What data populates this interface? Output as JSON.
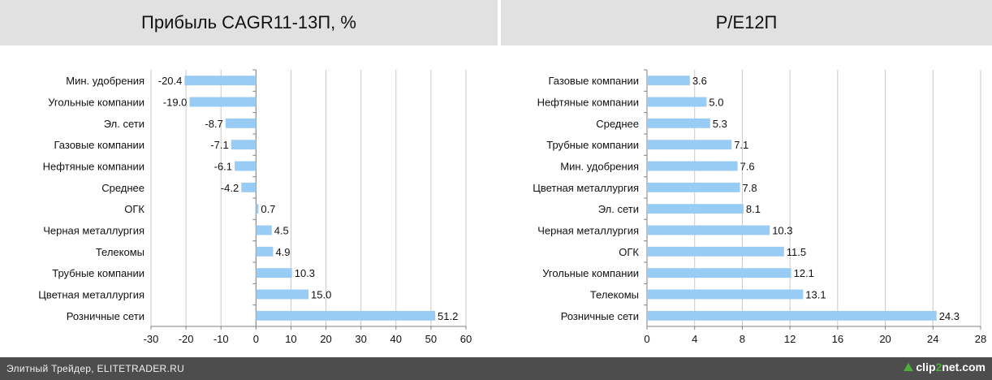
{
  "headers": {
    "left": "Прибыль CAGR11-13П, %",
    "right": "P/E12П"
  },
  "footer": {
    "left_text": "Элитный Трейдер, ELITETRADER.RU",
    "logo_pre": "clip",
    "logo_two": "2",
    "logo_post": "net.com"
  },
  "colors": {
    "bar": "#99ccf5",
    "header_bg": "#e1e1e1",
    "footer_bg": "#4d4d4d",
    "axis": "#808080",
    "grid": "#c8c8c8"
  },
  "chart_data": [
    {
      "type": "bar",
      "orientation": "horizontal",
      "title": "Прибыль CAGR11-13П, %",
      "categories": [
        "Мин. удобрения",
        "Угольные компании",
        "Эл. сети",
        "Газовые компании",
        "Нефтяные компании",
        "Среднее",
        "ОГК",
        "Черная металлургия",
        "Телекомы",
        "Трубные компании",
        "Цветная металлургия",
        "Розничные сети"
      ],
      "values": [
        -20.4,
        -19.0,
        -8.7,
        -7.1,
        -6.1,
        -4.2,
        0.7,
        4.5,
        4.9,
        10.3,
        15.0,
        51.2
      ],
      "data_labels": [
        "-20.4",
        "-19.0",
        "-8.7",
        "-7.1",
        "-6.1",
        "-4.2",
        "0.7",
        "4.5",
        "4.9",
        "10.3",
        "15.0",
        "51.2"
      ],
      "xlim": [
        -30,
        60
      ],
      "ticks": [
        -30,
        -20,
        -10,
        0,
        10,
        20,
        30,
        40,
        50,
        60
      ],
      "grid": true,
      "legend": false
    },
    {
      "type": "bar",
      "orientation": "horizontal",
      "title": "P/E12П",
      "categories": [
        "Газовые компании",
        "Нефтяные компании",
        "Среднее",
        "Трубные компании",
        "Мин. удобрения",
        "Цветная металлургия",
        "Эл. сети",
        "Черная металлургия",
        "ОГК",
        "Угольные компании",
        "Телекомы",
        "Розничные сети"
      ],
      "values": [
        3.6,
        5.0,
        5.3,
        7.1,
        7.6,
        7.8,
        8.1,
        10.3,
        11.5,
        12.1,
        13.1,
        24.3
      ],
      "data_labels": [
        "3.6",
        "5.0",
        "5.3",
        "7.1",
        "7.6",
        "7.8",
        "8.1",
        "10.3",
        "11.5",
        "12.1",
        "13.1",
        "24.3"
      ],
      "xlim": [
        0,
        28
      ],
      "ticks": [
        0,
        4,
        8,
        12,
        16,
        20,
        24,
        28
      ],
      "grid": true,
      "legend": false
    }
  ]
}
